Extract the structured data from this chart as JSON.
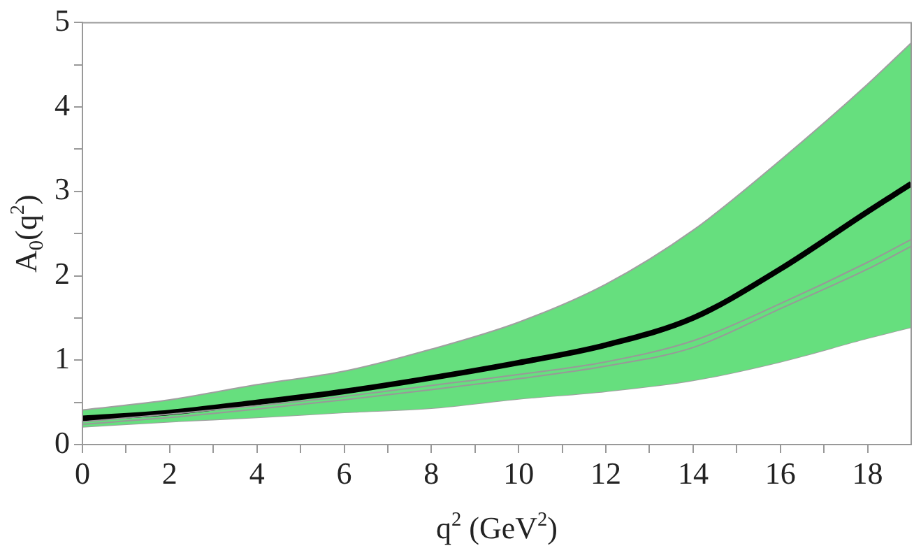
{
  "chart_data": {
    "type": "line",
    "xlabel": "q$^{2}$ (GeV$^{2}$)",
    "ylabel": "A$_{0}$(q$^{2}$)",
    "x": [
      0,
      2,
      4,
      6,
      8,
      10,
      12,
      14,
      16,
      18,
      19
    ],
    "series": [
      {
        "type": "area",
        "color": "#66df7e",
        "values": [
          0.41,
          0.53,
          0.71,
          0.87,
          1.13,
          1.45,
          1.9,
          2.54,
          3.37,
          4.27,
          4.76
        ]
      },
      {
        "type": "line",
        "color": "#a0a0a0",
        "values": [
          0.21,
          0.27,
          0.32,
          0.38,
          0.43,
          0.54,
          0.63,
          0.76,
          0.98,
          1.26,
          1.39
        ]
      },
      {
        "type": "line",
        "color": "#999999",
        "values": [
          0.27,
          0.36,
          0.46,
          0.57,
          0.7,
          0.83,
          0.98,
          1.23,
          1.67,
          2.16,
          2.43
        ]
      },
      {
        "type": "line",
        "color": "#999999",
        "values": [
          0.24,
          0.32,
          0.42,
          0.53,
          0.65,
          0.78,
          0.93,
          1.15,
          1.61,
          2.08,
          2.35
        ]
      },
      {
        "type": "line",
        "color": "#000000",
        "values": [
          0.31,
          0.38,
          0.5,
          0.63,
          0.79,
          0.97,
          1.18,
          1.5,
          2.08,
          2.76,
          3.09
        ]
      }
    ],
    "xlim": [
      0,
      19
    ],
    "xticks": [
      0,
      {
        "value": 1,
        "label": null
      },
      2,
      {
        "value": 3,
        "label": null
      },
      4,
      {
        "value": 5,
        "label": null
      },
      6,
      {
        "value": 7,
        "label": null
      },
      8,
      {
        "value": 9,
        "label": null
      },
      10,
      {
        "value": 11,
        "label": null
      },
      12,
      {
        "value": 13,
        "label": null
      },
      14,
      {
        "value": 15,
        "label": null
      },
      16,
      {
        "value": 17,
        "label": null
      },
      18
    ],
    "ylim": [
      0,
      5
    ],
    "yticks": [
      0,
      {
        "value": 0.5,
        "label": null
      },
      1,
      {
        "value": 1.5,
        "label": null
      },
      2,
      {
        "value": 2.5,
        "label": null
      },
      3,
      {
        "value": 3.5,
        "label": null
      },
      4,
      {
        "value": 4.5,
        "label": null
      },
      5
    ],
    "grid": false,
    "legend": false,
    "marker": "none",
    "line_style": "solid"
  }
}
